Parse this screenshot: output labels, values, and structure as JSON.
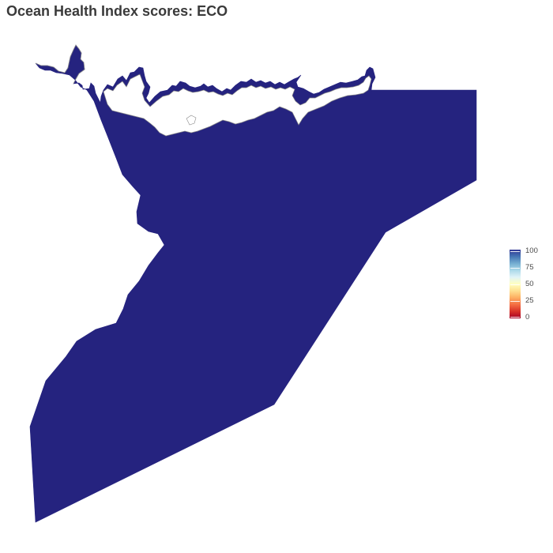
{
  "title": "Ocean Health Index scores: ECO",
  "map": {
    "region_fill_color": "#25237f",
    "score": 100
  },
  "legend": {
    "labels": [
      "100",
      "75",
      "50",
      "25",
      "0"
    ],
    "gradient_colors": [
      "#313695",
      "#4575b4",
      "#74add1",
      "#abd9e9",
      "#e0f3f8",
      "#ffffbf",
      "#fee090",
      "#fdae61",
      "#f46d43",
      "#d73027",
      "#a50026"
    ]
  }
}
